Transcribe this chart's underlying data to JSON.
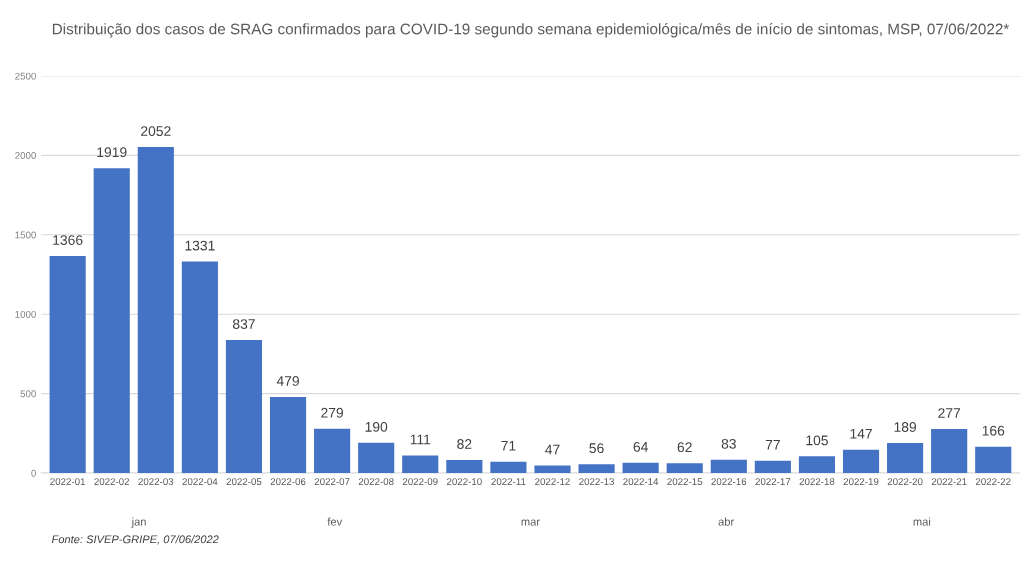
{
  "chart_data": {
    "type": "bar",
    "title": "Distribuição dos casos de SRAG confirmados para COVID-19 segundo semana epidemiológica/mês de início de sintomas, MSP, 07/06/2022*",
    "categories": [
      "2022-01",
      "2022-02",
      "2022-03",
      "2022-04",
      "2022-05",
      "2022-06",
      "2022-07",
      "2022-08",
      "2022-09",
      "2022-10",
      "2022-11",
      "2022-12",
      "2022-13",
      "2022-14",
      "2022-15",
      "2022-16",
      "2022-17",
      "2022-18",
      "2022-19",
      "2022-20",
      "2022-21",
      "2022-22"
    ],
    "values": [
      1366,
      1919,
      2052,
      1331,
      837,
      479,
      279,
      190,
      111,
      82,
      71,
      47,
      56,
      64,
      62,
      83,
      77,
      105,
      147,
      189,
      277,
      166
    ],
    "color": "#4472c4",
    "data_labels": true,
    "ylim": [
      0,
      2500
    ],
    "yticks": [
      0,
      500,
      1000,
      1500,
      2000,
      2500
    ],
    "grid": "y",
    "annotations": [
      "jan",
      "fev",
      "mar",
      "abr",
      "mai",
      "Fonte: SIVEP-GRIPE, 07/06/2022"
    ]
  }
}
